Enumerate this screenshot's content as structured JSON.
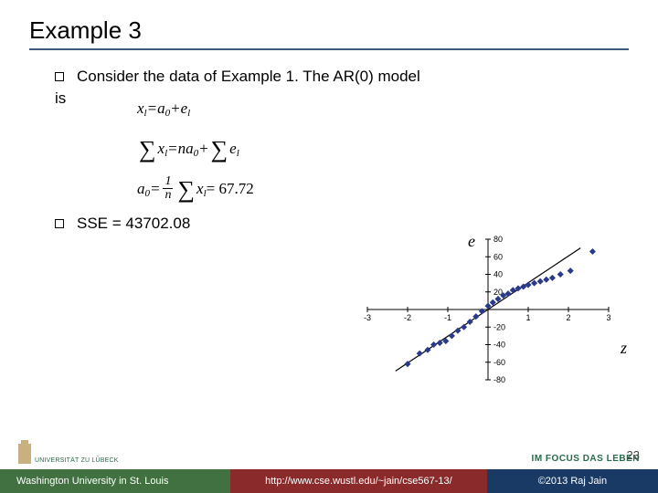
{
  "title": "Example 3",
  "bullet1": "Consider the data of Example 1. The AR(0) model",
  "is_text": "is",
  "formula1_parts": {
    "x": "x",
    "l": "l",
    "eq": " = ",
    "a": "a",
    "zero": "0",
    "plus": " + ",
    "e": "e"
  },
  "formula2_parts": {
    "eq": " = ",
    "n": "n",
    "a": "a",
    "zero": "0",
    "plus": " + "
  },
  "formula3_parts": {
    "a": "a",
    "zero": "0",
    "eq": " = ",
    "num1": "1",
    "denn": "n",
    "val": " = 67.72"
  },
  "sse_label": "SSE = 43702.08",
  "chart": {
    "e_label": "e",
    "z_label": "z",
    "x_ticks": [
      -3,
      -2,
      -1,
      0,
      1,
      2,
      3
    ],
    "y_ticks": [
      -80,
      -60,
      -40,
      -20,
      20,
      40,
      60,
      80
    ],
    "xlim": [
      -3,
      3
    ],
    "ylim": [
      -80,
      80
    ],
    "point_color": "#2a3a8a",
    "line_color": "#000000",
    "background": "#ffffff",
    "points": [
      [
        -2.0,
        -62
      ],
      [
        -1.7,
        -50
      ],
      [
        -1.5,
        -46
      ],
      [
        -1.35,
        -40
      ],
      [
        -1.2,
        -38
      ],
      [
        -1.05,
        -36
      ],
      [
        -0.9,
        -30
      ],
      [
        -0.75,
        -24
      ],
      [
        -0.6,
        -20
      ],
      [
        -0.45,
        -14
      ],
      [
        -0.3,
        -8
      ],
      [
        -0.15,
        -2
      ],
      [
        0.0,
        4
      ],
      [
        0.12,
        8
      ],
      [
        0.25,
        12
      ],
      [
        0.38,
        16
      ],
      [
        0.5,
        18
      ],
      [
        0.62,
        22
      ],
      [
        0.75,
        24
      ],
      [
        0.88,
        26
      ],
      [
        1.0,
        28
      ],
      [
        1.15,
        30
      ],
      [
        1.3,
        32
      ],
      [
        1.45,
        34
      ],
      [
        1.6,
        36
      ],
      [
        1.8,
        40
      ],
      [
        2.05,
        44
      ],
      [
        2.6,
        66
      ]
    ],
    "line": {
      "x1": -2.3,
      "y1": -70,
      "x2": 2.3,
      "y2": 70
    }
  },
  "page_number": "23",
  "footer": {
    "left": "Washington University in St. Louis",
    "mid": "http://www.cse.wustl.edu/~jain/cse567-13/",
    "right": "©2013 Raj Jain"
  },
  "logo_left_text": "UNIVERSITÄT ZU LÜBECK",
  "logo_right_text": "IM FOCUS DAS LEBEN"
}
